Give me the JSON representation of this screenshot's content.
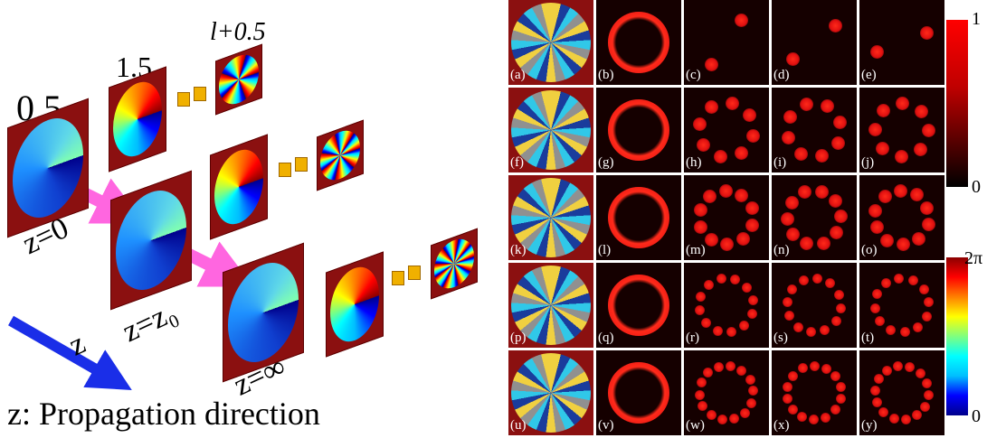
{
  "left": {
    "mode_labels": [
      "0.5",
      "1.5",
      "l+0.5"
    ],
    "plane_labels": [
      "z=0",
      "z=z₀",
      "z=∞"
    ],
    "axis_label": "z",
    "caption": "z: Propagation direction"
  },
  "right": {
    "panel_labels": [
      "(a)",
      "(b)",
      "(c)",
      "(d)",
      "(e)",
      "(f)",
      "(g)",
      "(h)",
      "(i)",
      "(j)",
      "(k)",
      "(l)",
      "(m)",
      "(n)",
      "(o)",
      "(p)",
      "(q)",
      "(r)",
      "(s)",
      "(t)",
      "(u)",
      "(v)",
      "(w)",
      "(x)",
      "(y)"
    ],
    "intensity_bar": {
      "max": "1",
      "min": "0"
    },
    "phase_bar": {
      "max": "2π",
      "min": "0"
    }
  }
}
